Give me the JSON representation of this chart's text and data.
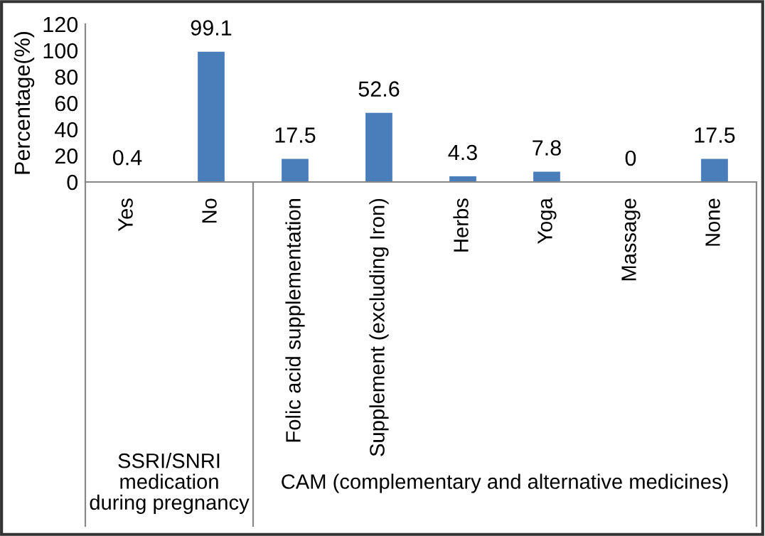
{
  "chart_data": {
    "type": "bar",
    "categories": [
      "Yes",
      "No",
      "Folic acid supplementation",
      "Supplement (excluding Iron)",
      "Herbs",
      "Yoga",
      "Massage",
      "None"
    ],
    "values": [
      0.4,
      99.1,
      17.5,
      52.6,
      4.3,
      7.8,
      0,
      17.5
    ],
    "color": "#4a7ebb",
    "ylabel": "Percentage(%)",
    "ylim": [
      0,
      120
    ],
    "yticks": [
      0,
      20,
      40,
      60,
      80,
      100,
      120
    ],
    "data_labels": true,
    "grid": false,
    "legend": false,
    "annotations": [
      "SSRI/SNRI\nmedication\nduring pregnancy",
      "CAM (complementary and alternative medicines)"
    ]
  }
}
